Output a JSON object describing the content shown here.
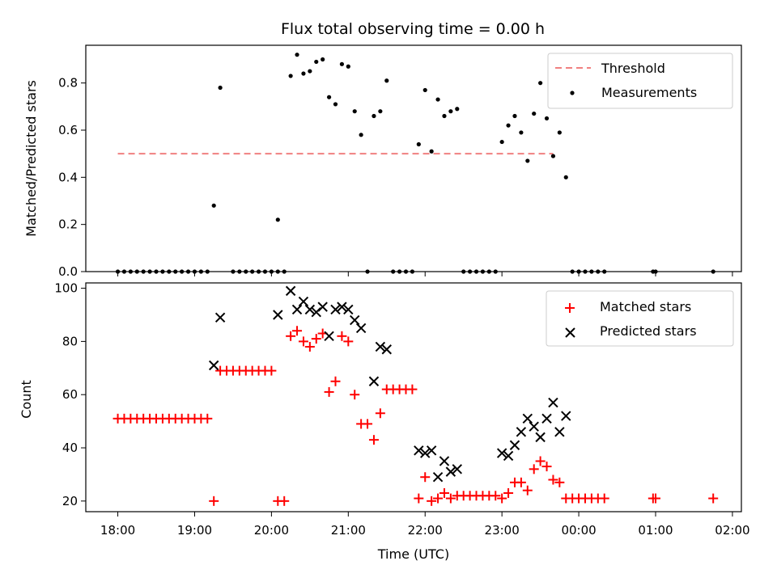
{
  "chart_data": [
    {
      "type": "scatter",
      "title": "Flux total observing time = 0.00 h",
      "xlabel": "",
      "ylabel": "Matched/Predicted stars",
      "xlim": [
        "17:35",
        "02:07"
      ],
      "ylim": [
        0,
        0.96
      ],
      "yticks": [
        "0.0",
        "0.2",
        "0.4",
        "0.6",
        "0.8"
      ],
      "legend": {
        "position": "top-right"
      },
      "threshold": {
        "name": "Threshold",
        "value": 0.5,
        "x_range": [
          "18:00",
          "23:40"
        ],
        "color": "#f08080"
      },
      "series": [
        {
          "name": "Measurements",
          "color": "#000000",
          "points": [
            [
              "18:00",
              0
            ],
            [
              "18:05",
              0
            ],
            [
              "18:10",
              0
            ],
            [
              "18:15",
              0
            ],
            [
              "18:20",
              0
            ],
            [
              "18:25",
              0
            ],
            [
              "18:30",
              0
            ],
            [
              "18:35",
              0
            ],
            [
              "18:40",
              0
            ],
            [
              "18:45",
              0
            ],
            [
              "18:50",
              0
            ],
            [
              "18:55",
              0
            ],
            [
              "19:00",
              0
            ],
            [
              "19:05",
              0
            ],
            [
              "19:10",
              0
            ],
            [
              "19:15",
              0.28
            ],
            [
              "19:20",
              0.78
            ],
            [
              "19:30",
              0
            ],
            [
              "19:35",
              0
            ],
            [
              "19:40",
              0
            ],
            [
              "19:45",
              0
            ],
            [
              "19:50",
              0
            ],
            [
              "19:55",
              0
            ],
            [
              "20:00",
              0
            ],
            [
              "20:05",
              0
            ],
            [
              "20:05",
              0.22
            ],
            [
              "20:10",
              0
            ],
            [
              "20:15",
              0.83
            ],
            [
              "20:20",
              0.92
            ],
            [
              "20:25",
              0.84
            ],
            [
              "20:30",
              0.85
            ],
            [
              "20:35",
              0.89
            ],
            [
              "20:40",
              0.9
            ],
            [
              "20:45",
              0.74
            ],
            [
              "20:50",
              0.71
            ],
            [
              "20:55",
              0.88
            ],
            [
              "21:00",
              0.87
            ],
            [
              "21:05",
              0.68
            ],
            [
              "21:10",
              0.58
            ],
            [
              "21:15",
              0
            ],
            [
              "21:20",
              0.66
            ],
            [
              "21:25",
              0.68
            ],
            [
              "21:30",
              0.81
            ],
            [
              "21:35",
              0
            ],
            [
              "21:40",
              0
            ],
            [
              "21:45",
              0
            ],
            [
              "21:50",
              0
            ],
            [
              "21:55",
              0.54
            ],
            [
              "22:00",
              0.77
            ],
            [
              "22:05",
              0.51
            ],
            [
              "22:10",
              0.73
            ],
            [
              "22:15",
              0.66
            ],
            [
              "22:20",
              0.68
            ],
            [
              "22:25",
              0.69
            ],
            [
              "22:30",
              0
            ],
            [
              "22:35",
              0
            ],
            [
              "22:40",
              0
            ],
            [
              "22:45",
              0
            ],
            [
              "22:50",
              0
            ],
            [
              "22:55",
              0
            ],
            [
              "23:00",
              0.55
            ],
            [
              "23:05",
              0.62
            ],
            [
              "23:10",
              0.66
            ],
            [
              "23:15",
              0.59
            ],
            [
              "23:20",
              0.47
            ],
            [
              "23:25",
              0.67
            ],
            [
              "23:30",
              0.8
            ],
            [
              "23:35",
              0.65
            ],
            [
              "23:40",
              0.49
            ],
            [
              "23:45",
              0.59
            ],
            [
              "23:50",
              0.4
            ],
            [
              "23:55",
              0
            ],
            [
              "00:00",
              0
            ],
            [
              "00:05",
              0
            ],
            [
              "00:10",
              0
            ],
            [
              "00:15",
              0
            ],
            [
              "00:20",
              0
            ],
            [
              "00:58",
              0
            ],
            [
              "01:00",
              0
            ],
            [
              "01:45",
              0
            ]
          ]
        }
      ]
    },
    {
      "type": "scatter",
      "title": "",
      "xlabel": "Time (UTC)",
      "ylabel": "Count",
      "xlim": [
        "17:35",
        "02:07"
      ],
      "ylim": [
        16,
        102
      ],
      "xticks": [
        "18:00",
        "19:00",
        "20:00",
        "21:00",
        "22:00",
        "23:00",
        "00:00",
        "01:00",
        "02:00"
      ],
      "yticks": [
        "20",
        "40",
        "60",
        "80",
        "100"
      ],
      "legend": {
        "position": "top-right"
      },
      "series": [
        {
          "name": "Matched stars",
          "marker": "+",
          "color": "#ff0000",
          "points": [
            [
              "18:00",
              51
            ],
            [
              "18:05",
              51
            ],
            [
              "18:10",
              51
            ],
            [
              "18:15",
              51
            ],
            [
              "18:20",
              51
            ],
            [
              "18:25",
              51
            ],
            [
              "18:30",
              51
            ],
            [
              "18:35",
              51
            ],
            [
              "18:40",
              51
            ],
            [
              "18:45",
              51
            ],
            [
              "18:50",
              51
            ],
            [
              "18:55",
              51
            ],
            [
              "19:00",
              51
            ],
            [
              "19:05",
              51
            ],
            [
              "19:10",
              51
            ],
            [
              "19:15",
              20
            ],
            [
              "19:20",
              69
            ],
            [
              "19:25",
              69
            ],
            [
              "19:30",
              69
            ],
            [
              "19:35",
              69
            ],
            [
              "19:40",
              69
            ],
            [
              "19:45",
              69
            ],
            [
              "19:50",
              69
            ],
            [
              "19:55",
              69
            ],
            [
              "20:00",
              69
            ],
            [
              "20:05",
              20
            ],
            [
              "20:10",
              20
            ],
            [
              "20:15",
              82
            ],
            [
              "20:20",
              84
            ],
            [
              "20:25",
              80
            ],
            [
              "20:30",
              78
            ],
            [
              "20:35",
              81
            ],
            [
              "20:40",
              83
            ],
            [
              "20:45",
              61
            ],
            [
              "20:50",
              65
            ],
            [
              "20:55",
              82
            ],
            [
              "21:00",
              80
            ],
            [
              "21:05",
              60
            ],
            [
              "21:10",
              49
            ],
            [
              "21:15",
              49
            ],
            [
              "21:20",
              43
            ],
            [
              "21:25",
              53
            ],
            [
              "21:30",
              62
            ],
            [
              "21:35",
              62
            ],
            [
              "21:40",
              62
            ],
            [
              "21:45",
              62
            ],
            [
              "21:50",
              62
            ],
            [
              "21:55",
              21
            ],
            [
              "22:00",
              29
            ],
            [
              "22:05",
              20
            ],
            [
              "22:10",
              21
            ],
            [
              "22:15",
              23
            ],
            [
              "22:20",
              21
            ],
            [
              "22:25",
              22
            ],
            [
              "22:30",
              22
            ],
            [
              "22:35",
              22
            ],
            [
              "22:40",
              22
            ],
            [
              "22:45",
              22
            ],
            [
              "22:50",
              22
            ],
            [
              "22:55",
              22
            ],
            [
              "23:00",
              21
            ],
            [
              "23:05",
              23
            ],
            [
              "23:10",
              27
            ],
            [
              "23:15",
              27
            ],
            [
              "23:20",
              24
            ],
            [
              "23:25",
              32
            ],
            [
              "23:30",
              35
            ],
            [
              "23:35",
              33
            ],
            [
              "23:40",
              28
            ],
            [
              "23:45",
              27
            ],
            [
              "23:50",
              21
            ],
            [
              "23:55",
              21
            ],
            [
              "00:00",
              21
            ],
            [
              "00:05",
              21
            ],
            [
              "00:10",
              21
            ],
            [
              "00:15",
              21
            ],
            [
              "00:20",
              21
            ],
            [
              "00:58",
              21
            ],
            [
              "01:00",
              21
            ],
            [
              "01:45",
              21
            ]
          ]
        },
        {
          "name": "Predicted stars",
          "marker": "x",
          "color": "#000000",
          "points": [
            [
              "19:15",
              71
            ],
            [
              "19:20",
              89
            ],
            [
              "20:05",
              90
            ],
            [
              "20:15",
              99
            ],
            [
              "20:20",
              92
            ],
            [
              "20:25",
              95
            ],
            [
              "20:30",
              92
            ],
            [
              "20:35",
              91
            ],
            [
              "20:40",
              93
            ],
            [
              "20:45",
              82
            ],
            [
              "20:50",
              92
            ],
            [
              "20:55",
              93
            ],
            [
              "21:00",
              92
            ],
            [
              "21:05",
              88
            ],
            [
              "21:10",
              85
            ],
            [
              "21:20",
              65
            ],
            [
              "21:25",
              78
            ],
            [
              "21:30",
              77
            ],
            [
              "21:55",
              39
            ],
            [
              "22:00",
              38
            ],
            [
              "22:05",
              39
            ],
            [
              "22:10",
              29
            ],
            [
              "22:15",
              35
            ],
            [
              "22:20",
              31
            ],
            [
              "22:25",
              32
            ],
            [
              "23:00",
              38
            ],
            [
              "23:05",
              37
            ],
            [
              "23:10",
              41
            ],
            [
              "23:15",
              46
            ],
            [
              "23:20",
              51
            ],
            [
              "23:25",
              48
            ],
            [
              "23:30",
              44
            ],
            [
              "23:35",
              51
            ],
            [
              "23:40",
              57
            ],
            [
              "23:45",
              46
            ],
            [
              "23:50",
              52
            ]
          ]
        }
      ]
    }
  ]
}
